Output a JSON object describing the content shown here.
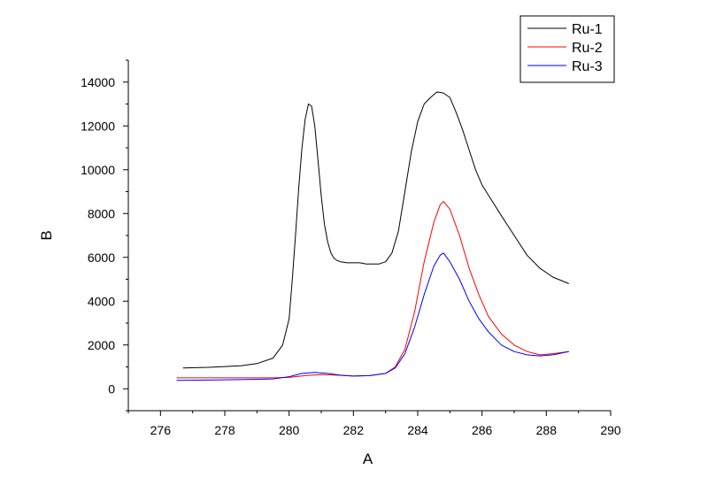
{
  "chart_data": {
    "type": "line",
    "title": "",
    "xlabel": "A",
    "ylabel": "B",
    "xlim": [
      275,
      290
    ],
    "ylim": [
      -1000,
      15000
    ],
    "x_ticks": [
      276,
      278,
      280,
      282,
      284,
      286,
      288,
      290
    ],
    "y_ticks": [
      0,
      2000,
      4000,
      6000,
      8000,
      10000,
      12000,
      14000
    ],
    "grid": false,
    "legend_position": "top-right",
    "series": [
      {
        "name": "Ru-1",
        "color": "#000000",
        "x": [
          276.7,
          277.5,
          278.5,
          279.0,
          279.5,
          279.8,
          280.0,
          280.1,
          280.2,
          280.3,
          280.4,
          280.5,
          280.6,
          280.7,
          280.8,
          280.9,
          281.0,
          281.1,
          281.2,
          281.3,
          281.4,
          281.5,
          281.6,
          281.8,
          282.0,
          282.2,
          282.4,
          282.6,
          282.8,
          283.0,
          283.2,
          283.4,
          283.6,
          283.8,
          284.0,
          284.2,
          284.4,
          284.6,
          284.8,
          285.0,
          285.2,
          285.4,
          285.6,
          285.8,
          286.0,
          286.3,
          286.6,
          287.0,
          287.4,
          287.8,
          288.2,
          288.7
        ],
        "y": [
          950,
          980,
          1050,
          1150,
          1400,
          2000,
          3200,
          5000,
          7000,
          9200,
          11000,
          12300,
          13000,
          12900,
          12000,
          10400,
          8800,
          7500,
          6700,
          6200,
          5950,
          5850,
          5800,
          5750,
          5750,
          5750,
          5700,
          5700,
          5700,
          5800,
          6200,
          7200,
          9000,
          10800,
          12200,
          13000,
          13300,
          13550,
          13500,
          13300,
          12600,
          11800,
          10900,
          10000,
          9300,
          8600,
          7900,
          7000,
          6100,
          5500,
          5100,
          4800
        ]
      },
      {
        "name": "Ru-2",
        "color": "#ff0000",
        "x": [
          276.5,
          277.5,
          278.5,
          279.5,
          280.0,
          280.5,
          281.0,
          281.5,
          282.0,
          282.5,
          283.0,
          283.3,
          283.6,
          283.9,
          284.2,
          284.5,
          284.7,
          284.8,
          285.0,
          285.3,
          285.6,
          285.9,
          286.2,
          286.6,
          287.0,
          287.4,
          287.8,
          288.2,
          288.7
        ],
        "y": [
          500,
          500,
          500,
          500,
          520,
          600,
          650,
          620,
          580,
          600,
          700,
          1000,
          1800,
          3500,
          5800,
          7600,
          8400,
          8550,
          8200,
          7000,
          5500,
          4300,
          3300,
          2500,
          2000,
          1700,
          1550,
          1600,
          1700
        ]
      },
      {
        "name": "Ru-3",
        "color": "#0000ff",
        "x": [
          276.5,
          277.5,
          278.5,
          279.5,
          280.0,
          280.4,
          280.8,
          281.2,
          281.6,
          282.0,
          282.5,
          283.0,
          283.3,
          283.6,
          283.9,
          284.2,
          284.5,
          284.7,
          284.8,
          285.0,
          285.3,
          285.6,
          285.9,
          286.2,
          286.6,
          287.0,
          287.4,
          287.8,
          288.2,
          288.7
        ],
        "y": [
          380,
          400,
          420,
          450,
          550,
          700,
          750,
          700,
          620,
          580,
          600,
          700,
          950,
          1600,
          2800,
          4300,
          5600,
          6100,
          6200,
          5800,
          5000,
          4000,
          3200,
          2600,
          2000,
          1700,
          1550,
          1500,
          1550,
          1700
        ]
      }
    ]
  }
}
